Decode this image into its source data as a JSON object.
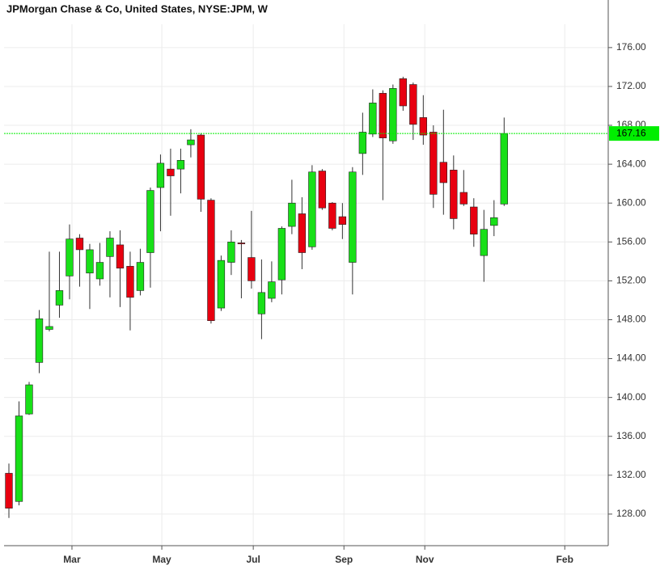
{
  "chart_data": {
    "type": "candlestick",
    "title": "JPMorgan Chase & Co, United States, NYSE:JPM, W",
    "open": [
      132.2,
      129.3,
      138.3,
      143.6,
      147.0,
      149.5,
      152.5,
      156.4,
      152.8,
      152.2,
      154.5,
      155.7,
      153.5,
      151.0,
      154.9,
      161.6,
      163.5,
      163.5,
      166.0,
      167.0,
      160.3,
      149.2,
      153.9,
      155.9,
      154.4,
      148.6,
      150.2,
      152.1,
      157.6,
      158.9,
      155.5,
      163.3,
      160.0,
      158.6,
      153.9,
      165.1,
      167.1,
      171.3,
      166.4,
      172.8,
      172.2,
      168.8,
      167.3,
      164.2,
      163.4,
      161.1,
      159.6,
      154.6,
      157.7,
      159.9
    ],
    "high": [
      133.2,
      139.6,
      141.6,
      149.0,
      155.0,
      155.0,
      157.8,
      156.8,
      155.8,
      155.9,
      157.1,
      157.2,
      155.0,
      155.3,
      161.6,
      165.0,
      165.6,
      165.6,
      167.6,
      167.2,
      160.5,
      154.6,
      157.2,
      156.2,
      159.2,
      154.2,
      154.0,
      157.6,
      162.4,
      160.6,
      163.9,
      163.5,
      160.1,
      160.0,
      163.7,
      169.3,
      171.7,
      171.6,
      172.2,
      173.0,
      172.4,
      171.1,
      168.0,
      169.6,
      164.9,
      163.4,
      160.5,
      159.3,
      160.3,
      168.8
    ],
    "low": [
      127.6,
      128.9,
      138.2,
      142.5,
      146.8,
      148.2,
      150.1,
      151.4,
      149.1,
      151.5,
      150.3,
      149.3,
      146.9,
      150.5,
      151.3,
      157.1,
      158.7,
      161.0,
      164.7,
      159.1,
      147.6,
      148.9,
      152.6,
      150.2,
      151.2,
      146.0,
      149.8,
      150.6,
      156.8,
      153.2,
      155.2,
      159.3,
      157.2,
      156.3,
      150.6,
      162.9,
      166.8,
      160.3,
      166.1,
      169.5,
      166.5,
      166.0,
      159.5,
      158.8,
      157.3,
      159.7,
      155.5,
      151.9,
      156.6,
      159.7
    ],
    "close": [
      128.6,
      138.1,
      141.3,
      148.1,
      147.3,
      151.0,
      156.3,
      155.2,
      155.2,
      153.9,
      156.4,
      153.3,
      150.3,
      153.9,
      161.3,
      164.1,
      162.8,
      164.4,
      166.5,
      160.4,
      147.9,
      154.1,
      156.0,
      155.8,
      152.0,
      150.8,
      151.9,
      157.4,
      160.0,
      154.9,
      163.2,
      159.5,
      157.4,
      157.8,
      163.2,
      167.3,
      170.3,
      166.7,
      171.8,
      170.0,
      168.1,
      167.0,
      160.9,
      162.1,
      158.4,
      159.9,
      156.8,
      157.3,
      158.5,
      167.16
    ],
    "up_color": "#18e018",
    "down_color": "#e80010",
    "last_price": 167.16,
    "last_price_color": "#00ee00",
    "xlim": [
      -0.48,
      59.3
    ],
    "xticks": [
      {
        "value": 6.24,
        "label": "Mar"
      },
      {
        "value": 15.13,
        "label": "May"
      },
      {
        "value": 24.18,
        "label": "Jul"
      },
      {
        "value": 33.15,
        "label": "Sep"
      },
      {
        "value": 41.15,
        "label": "Nov"
      },
      {
        "value": 55.0,
        "label": "Feb"
      }
    ],
    "ylim": [
      124.75,
      178.4
    ],
    "yticks": [
      {
        "value": 128,
        "label": "128.00"
      },
      {
        "value": 132,
        "label": "132.00"
      },
      {
        "value": 136,
        "label": "136.00"
      },
      {
        "value": 140,
        "label": "140.00"
      },
      {
        "value": 144,
        "label": "144.00"
      },
      {
        "value": 148,
        "label": "148.00"
      },
      {
        "value": 152,
        "label": "152.00"
      },
      {
        "value": 156,
        "label": "156.00"
      },
      {
        "value": 160,
        "label": "160.00"
      },
      {
        "value": 164,
        "label": "164.00"
      },
      {
        "value": 168,
        "label": "168.00"
      },
      {
        "value": 172,
        "label": "172.00"
      },
      {
        "value": 176,
        "label": "176.00"
      }
    ],
    "grid": true
  }
}
